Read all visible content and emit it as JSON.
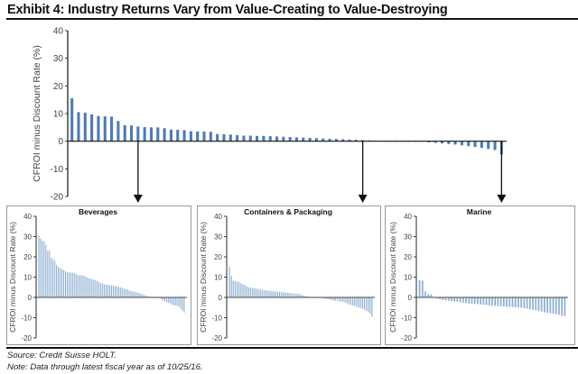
{
  "header": {
    "title": "Exhibit 4: Industry Returns Vary from Value-Creating to Value-Destroying"
  },
  "footer": {
    "source": "Source: Credit Suisse HOLT.",
    "note": "Note: Data through latest fiscal year as of 10/25/16."
  },
  "colors": {
    "bar_main": "#4f7bb0",
    "bar_panel": "#8fb0d3",
    "axis": "#111111"
  },
  "chart_data": [
    {
      "id": "main",
      "type": "bar",
      "title": "",
      "xlabel": "",
      "ylabel": "CFROI minus Discount Rate (%)",
      "ylim": [
        -20,
        40
      ],
      "yticks": [
        40,
        30,
        20,
        10,
        0,
        -10,
        -20
      ],
      "grid": false,
      "values": [
        15.5,
        10.5,
        10.3,
        9.7,
        9.1,
        9.0,
        8.9,
        7.3,
        5.8,
        5.7,
        5.3,
        5.1,
        5.0,
        5.0,
        4.7,
        4.2,
        4.1,
        4.0,
        3.6,
        3.5,
        3.5,
        3.4,
        2.6,
        2.5,
        2.4,
        2.2,
        2.0,
        2.0,
        1.9,
        1.9,
        1.8,
        1.7,
        1.6,
        1.5,
        1.4,
        1.3,
        1.2,
        1.1,
        1.0,
        0.9,
        0.8,
        0.7,
        0.6,
        0.5,
        0.4,
        0.3,
        0.2,
        0.1,
        0.0,
        0.0,
        0.0,
        0.0,
        0.0,
        -0.2,
        -0.4,
        -0.6,
        -0.8,
        -1.0,
        -1.2,
        -1.5,
        -1.8,
        -2.1,
        -2.4,
        -2.8,
        -3.2,
        -4.8
      ],
      "annotations": [
        {
          "label": "arrow-to-beverages",
          "bar_index": 10
        },
        {
          "label": "arrow-to-containers",
          "bar_index": 44
        },
        {
          "label": "arrow-to-marine",
          "bar_index": 65
        }
      ]
    },
    {
      "id": "beverages",
      "type": "bar",
      "title": "Beverages",
      "ylabel": "CFROI minus Discount Rate (%)",
      "ylim": [
        -20,
        40
      ],
      "yticks": [
        40,
        30,
        20,
        10,
        0,
        -10,
        -20
      ],
      "values": [
        30.5,
        29,
        28,
        27.5,
        26,
        23,
        23,
        19.5,
        19,
        18,
        16,
        15,
        14.5,
        14,
        13.5,
        13,
        12.5,
        12.3,
        12.2,
        12.2,
        12,
        11.5,
        11,
        11,
        10.8,
        10.7,
        10.5,
        10,
        9.7,
        9.3,
        9,
        8.8,
        8.5,
        8,
        7.5,
        7,
        6.8,
        6.5,
        6.3,
        6.2,
        6,
        5.9,
        5.8,
        5.6,
        5.4,
        5.2,
        5,
        4.7,
        4.3,
        4.2,
        4,
        3.5,
        3,
        3,
        2.8,
        2.6,
        2.3,
        2,
        1.7,
        1.3,
        1,
        0.7,
        0.5,
        0.3,
        0.1,
        0,
        0,
        0,
        -0.3,
        -1,
        -1.5,
        -2,
        -2.3,
        -2.6,
        -3,
        -3.5,
        -3.8,
        -4,
        -4.2,
        -4.5,
        -5.5,
        -6.5,
        -7.5
      ]
    },
    {
      "id": "containers",
      "type": "bar",
      "title": "Containers & Packaging",
      "ylabel": "CFROI minus Discount Rate (%)",
      "ylim": [
        -20,
        40
      ],
      "yticks": [
        40,
        30,
        20,
        10,
        0,
        -10,
        -20
      ],
      "values": [
        15,
        10.5,
        8.3,
        8,
        7.8,
        7.5,
        7,
        6.5,
        6,
        5.5,
        5,
        4.8,
        4.7,
        4.5,
        4.3,
        4.2,
        4,
        3.8,
        3.6,
        3.5,
        3.4,
        3.3,
        3.2,
        3,
        2.9,
        2.8,
        2.7,
        2.6,
        2.5,
        2.4,
        2.3,
        2.2,
        2.1,
        2,
        1.9,
        1.8,
        1.7,
        1.5,
        1,
        0.8,
        0.5,
        0.3,
        0.1,
        0,
        0,
        0,
        0,
        -0.1,
        -0.3,
        -0.5,
        -0.7,
        -0.9,
        -1.1,
        -1.3,
        -1.5,
        -1.6,
        -1.7,
        -1.8,
        -2,
        -2.2,
        -2.5,
        -3,
        -3.5,
        -3.8,
        -4,
        -4.3,
        -4.6,
        -5,
        -5.3,
        -5.6,
        -6,
        -6.5,
        -7,
        -8,
        -9.5
      ]
    },
    {
      "id": "marine",
      "type": "bar",
      "title": "Marine",
      "ylabel": "CFROI minus Discount Rate (%)",
      "ylim": [
        -20,
        40
      ],
      "yticks": [
        40,
        30,
        20,
        10,
        0,
        -10,
        -20
      ],
      "values": [
        8.5,
        8.3,
        3,
        1.7,
        1.5,
        0,
        -0.5,
        -1,
        -1.3,
        -1.5,
        -1.6,
        -1.8,
        -2,
        -2.2,
        -2.4,
        -2.6,
        -2.8,
        -3,
        -3.1,
        -3.2,
        -3.3,
        -3.5,
        -3.6,
        -3.8,
        -4,
        -4.1,
        -4.2,
        -4.3,
        -4.4,
        -4.5,
        -4.6,
        -4.7,
        -4.8,
        -4.9,
        -5,
        -5.1,
        -5.3,
        -5.5,
        -5.8,
        -6,
        -6.3,
        -6.6,
        -7,
        -7.3,
        -7.6,
        -7.8,
        -8,
        -8.3,
        -8.6,
        -9,
        -9.2
      ]
    }
  ]
}
